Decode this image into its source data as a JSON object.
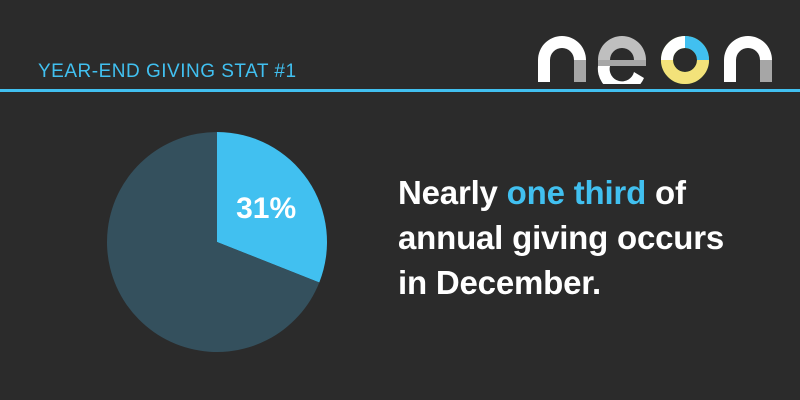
{
  "header": {
    "title": "YEAR-END GIVING STAT #1",
    "accent_color": "#41c0f0"
  },
  "logo": {
    "wordmark": "neon",
    "registered_mark": "®"
  },
  "headline": {
    "line1_pre": "Nearly ",
    "line1_accent": "one third",
    "line1_post": " of",
    "line2": "annual giving occurs",
    "line3": "in December."
  },
  "chart_data": {
    "type": "pie",
    "slices": [
      {
        "label": "31%",
        "value": 31,
        "color": "#41c0f0"
      },
      {
        "value": 69,
        "color": "#34505d"
      }
    ]
  }
}
